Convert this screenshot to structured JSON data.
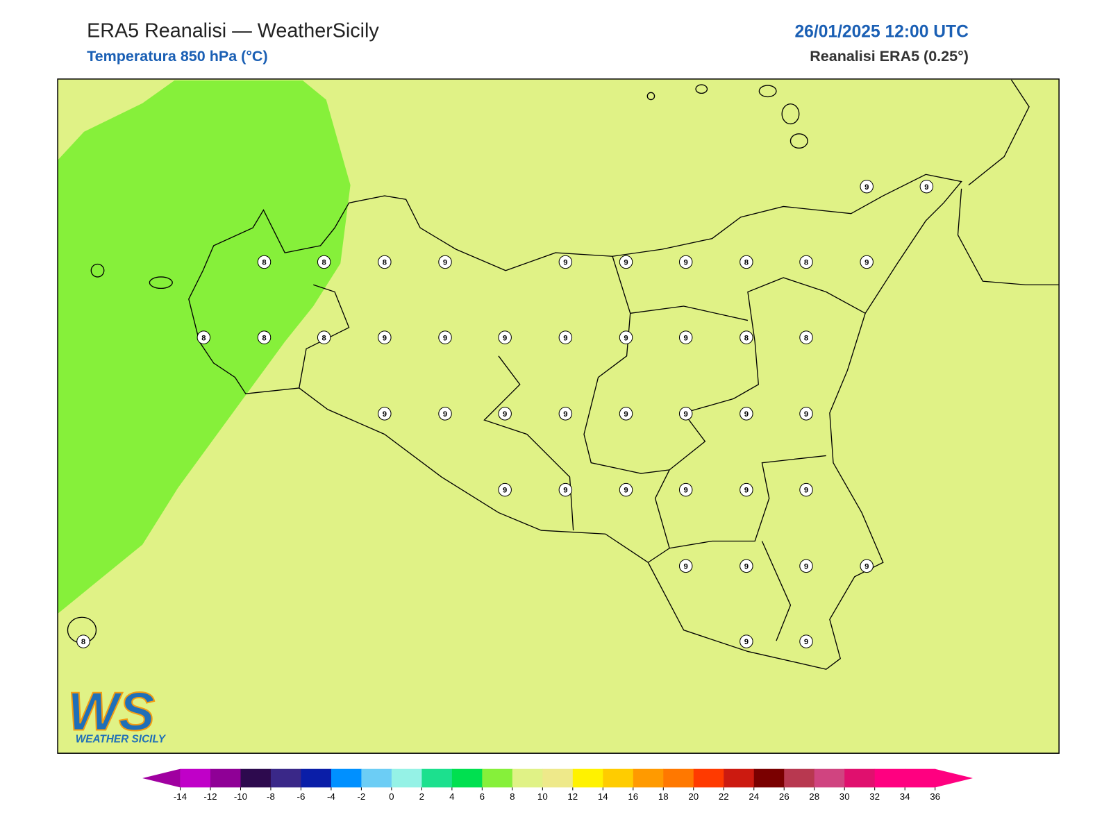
{
  "header": {
    "title": "ERA5 Reanalisi — WeatherSicily",
    "subtitle": "Temperatura 850 hPa (°C)",
    "datetime": "26/01/2025 12:00 UTC",
    "source": "Reanalisi ERA5 (0.25°)"
  },
  "logo": {
    "initials": "WS",
    "name": "WEATHER SICILY"
  },
  "map": {
    "background_color": "#e0f286",
    "markers": [
      9,
      9,
      8,
      8,
      8,
      9,
      9,
      9,
      9,
      8,
      8,
      9,
      8,
      8,
      8,
      9,
      9,
      9,
      9,
      9,
      9,
      8,
      8,
      9,
      9,
      9,
      9,
      9,
      9,
      9,
      9,
      9,
      9,
      9,
      9,
      9,
      9,
      9,
      9,
      9,
      9,
      8,
      9,
      9
    ]
  },
  "colorbar": {
    "ticks": [
      -14,
      -12,
      -10,
      -8,
      -6,
      -4,
      -2,
      0,
      2,
      4,
      6,
      8,
      10,
      12,
      14,
      16,
      18,
      20,
      22,
      24,
      26,
      28,
      30,
      32,
      34,
      36
    ],
    "under_color": "#a000a0",
    "over_color": "#ff0080",
    "colors": [
      "#c000c8",
      "#8f0096",
      "#2d0a4e",
      "#3a2888",
      "#0a1ea8",
      "#0090ff",
      "#6ccdf5",
      "#95f2e6",
      "#1ce08e",
      "#00e050",
      "#86f03a",
      "#e0f286",
      "#eee98a",
      "#fff200",
      "#ffcc00",
      "#ff9a00",
      "#ff7800",
      "#ff3a00",
      "#cc1a10",
      "#7a0000",
      "#b83850",
      "#d04480",
      "#e0106e",
      "#ff0080",
      "#ff0080"
    ]
  }
}
